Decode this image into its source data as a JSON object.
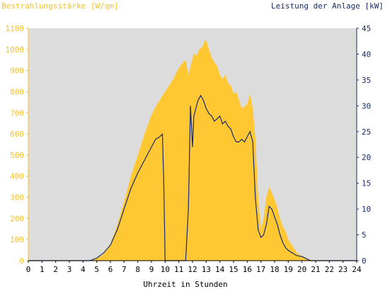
{
  "chart_data": {
    "type": "area",
    "ylabel_left": "Bestrahlungsstärke [W/qm]",
    "ylabel_right": "Leistung der Anlage [kW]",
    "xlabel": "Uhrzeit in Stunden",
    "xlim": [
      0,
      24
    ],
    "ylim_left": [
      0,
      1100
    ],
    "ylim_right": [
      0,
      45
    ],
    "x_ticks": [
      "0",
      "1",
      "2",
      "3",
      "4",
      "5",
      "6",
      "7",
      "8",
      "9",
      "10",
      "11",
      "12",
      "13",
      "14",
      "15",
      "16",
      "17",
      "18",
      "19",
      "20",
      "21",
      "22",
      "23",
      "24"
    ],
    "y_ticks_left": [
      "0",
      "100",
      "200",
      "300",
      "400",
      "500",
      "600",
      "700",
      "800",
      "900",
      "1000",
      "1100"
    ],
    "y_ticks_right": [
      "0",
      "5",
      "10",
      "15",
      "20",
      "25",
      "30",
      "35",
      "40",
      "45"
    ],
    "grid": false,
    "colors": {
      "irradiance_fill": "#ffc832",
      "power_line": "#1a2a6a",
      "plot_background": "#dcdcdc",
      "left_axis_text": "#f5c12a",
      "right_axis_text": "#1a2a6a"
    },
    "series": [
      {
        "axis": "left",
        "style": "filled-area",
        "x": [
          0,
          4.5,
          5.0,
          5.5,
          6.0,
          6.5,
          7.0,
          7.5,
          8.0,
          8.5,
          9.0,
          9.5,
          10.0,
          10.3,
          10.6,
          10.9,
          11.2,
          11.5,
          11.7,
          11.9,
          12.1,
          12.3,
          12.5,
          12.7,
          12.9,
          13.0,
          13.2,
          13.4,
          13.6,
          13.8,
          14.0,
          14.2,
          14.4,
          14.6,
          14.8,
          15.0,
          15.2,
          15.4,
          15.6,
          15.8,
          16.0,
          16.2,
          16.4,
          16.6,
          16.8,
          17.0,
          17.2,
          17.4,
          17.6,
          17.8,
          18.0,
          18.2,
          18.4,
          18.6,
          18.8,
          19.0,
          19.2,
          19.4,
          19.6,
          19.8,
          20.0,
          20.3,
          20.6,
          21.0,
          24
        ],
        "y": [
          0,
          0,
          10,
          30,
          80,
          170,
          280,
          400,
          500,
          600,
          690,
          750,
          800,
          830,
          860,
          900,
          930,
          950,
          880,
          930,
          980,
          970,
          1000,
          1010,
          1040,
          1045,
          1000,
          960,
          940,
          920,
          880,
          860,
          880,
          840,
          830,
          790,
          800,
          760,
          720,
          730,
          740,
          790,
          720,
          580,
          300,
          150,
          200,
          300,
          350,
          320,
          290,
          250,
          200,
          160,
          140,
          100,
          80,
          60,
          40,
          30,
          20,
          10,
          5,
          0,
          0
        ]
      },
      {
        "axis": "right",
        "style": "line",
        "x": [
          0,
          4.5,
          5.0,
          5.5,
          6.0,
          6.5,
          7.0,
          7.5,
          8.0,
          8.5,
          9.0,
          9.3,
          9.6,
          9.8,
          9.9,
          10.0,
          11.5,
          11.7,
          11.85,
          12.0,
          12.1,
          12.2,
          12.4,
          12.6,
          12.8,
          13.0,
          13.2,
          13.4,
          13.6,
          13.8,
          14.0,
          14.2,
          14.4,
          14.6,
          14.8,
          15.0,
          15.2,
          15.4,
          15.6,
          15.8,
          16.0,
          16.2,
          16.4,
          16.6,
          16.8,
          17.0,
          17.2,
          17.4,
          17.6,
          17.8,
          18.0,
          18.2,
          18.4,
          18.6,
          18.8,
          19.0,
          19.3,
          19.6,
          20.0,
          20.4,
          20.6,
          24
        ],
        "y": [
          0,
          0,
          0.5,
          1.5,
          3,
          6,
          10,
          14,
          17,
          19.5,
          22,
          23.5,
          24,
          24.5,
          15,
          0,
          0,
          10,
          30,
          22,
          28,
          29,
          31,
          32,
          31,
          29.5,
          28.5,
          28,
          27,
          27.5,
          28,
          26.5,
          27,
          26,
          25.5,
          24,
          23,
          23,
          23.5,
          23,
          24,
          25,
          23,
          12,
          6,
          4.5,
          5,
          7,
          10.5,
          10,
          8.5,
          7,
          5,
          3.5,
          2.5,
          2,
          1.5,
          1,
          0.8,
          0.3,
          0,
          0
        ]
      }
    ]
  }
}
